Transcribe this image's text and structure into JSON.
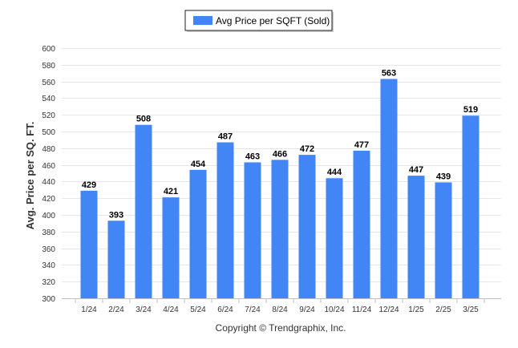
{
  "chart_data": {
    "type": "bar",
    "categories": [
      "1/24",
      "2/24",
      "3/24",
      "4/24",
      "5/24",
      "6/24",
      "7/24",
      "8/24",
      "9/24",
      "10/24",
      "11/24",
      "12/24",
      "1/25",
      "2/25",
      "3/25"
    ],
    "series": [
      {
        "name": "Avg Price per SQFT (Sold)",
        "values": [
          429,
          393,
          508,
          421,
          454,
          487,
          463,
          466,
          472,
          444,
          477,
          563,
          447,
          439,
          519
        ],
        "color": "#4285f4"
      }
    ],
    "ylabel": "Avg. Price per SQ. FT.",
    "xlabel": "",
    "ylim": [
      300,
      600
    ],
    "yticks": [
      300,
      320,
      340,
      360,
      380,
      400,
      420,
      440,
      460,
      480,
      500,
      520,
      540,
      560,
      580,
      600
    ],
    "grid": true,
    "legend_position": "top-center",
    "data_labels": true
  },
  "footer": {
    "credit": "Copyright © Trendgraphix, Inc."
  }
}
